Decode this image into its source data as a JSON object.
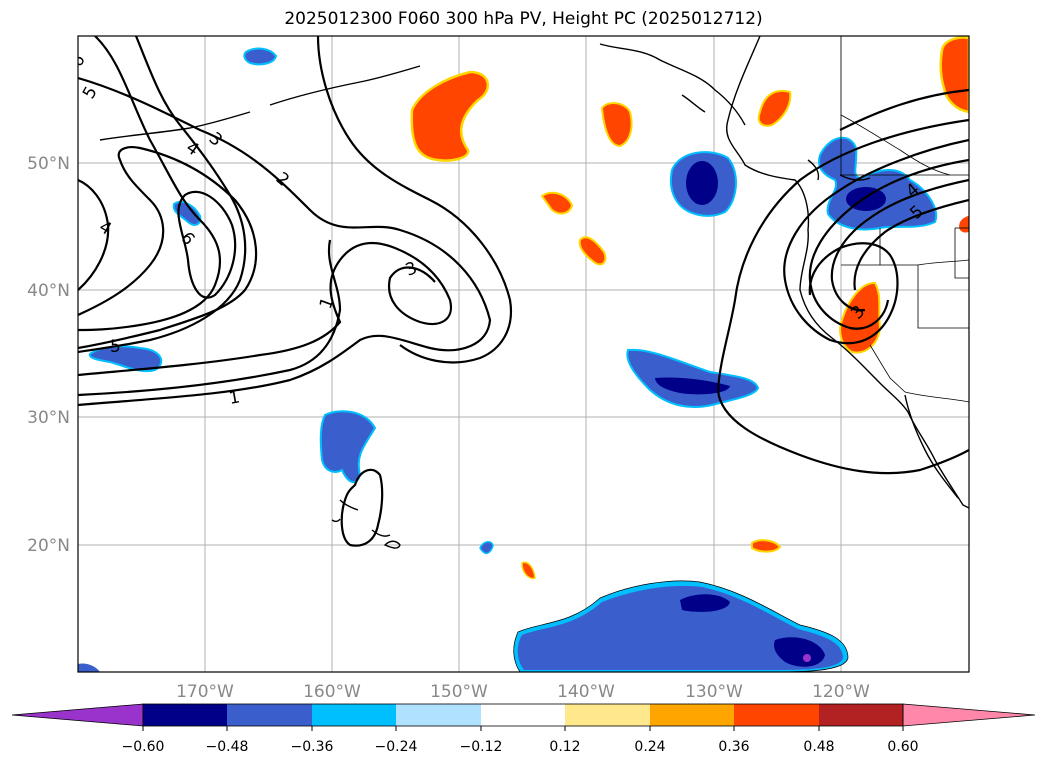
{
  "title": "2025012300 F060 300 hPa PV, Height PC (2025012712)",
  "lat_labels": [
    "50°N",
    "40°N",
    "30°N",
    "20°N"
  ],
  "lon_labels": [
    "170°W",
    "160°W",
    "150°W",
    "140°W",
    "130°W",
    "120°W"
  ],
  "contour_labels": [
    "6",
    "5",
    "4",
    "3",
    "2",
    "6",
    "4",
    "5",
    "3",
    "1",
    "1",
    "4",
    "5",
    "3"
  ],
  "colorbar": {
    "ticks": [
      "−0.60",
      "−0.48",
      "−0.36",
      "−0.24",
      "−0.12",
      "0.12",
      "0.24",
      "0.36",
      "0.48",
      "0.60"
    ],
    "colors": [
      "#9933cc",
      "#000088",
      "#3a5fcd",
      "#00bfff",
      "#b0e2ff",
      "#ffffff",
      "#ffe78c",
      "#ffa500",
      "#ff4500",
      "#b22222",
      "#ff88aa"
    ]
  },
  "fill_colors": {
    "neg_outer": "#00bfff",
    "neg_mid": "#3a5fcd",
    "neg_core": "#000088",
    "neg_peak": "#9933cc",
    "pos_outer": "#ffd700",
    "pos_mid": "#ff4500"
  }
}
